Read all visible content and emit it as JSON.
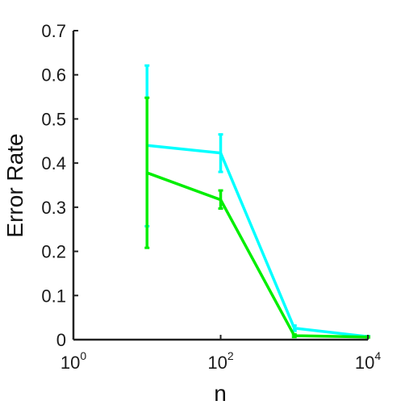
{
  "chart_data": {
    "type": "line",
    "title": "",
    "xlabel": "n",
    "ylabel": "Error Rate",
    "xscale": "log",
    "xlim": [
      1,
      10000
    ],
    "ylim": [
      0,
      0.7
    ],
    "grid": false,
    "xticks": [
      {
        "value": 1,
        "base": "10",
        "exp": "0"
      },
      {
        "value": 100,
        "base": "10",
        "exp": "2"
      },
      {
        "value": 10000,
        "base": "10",
        "exp": "4"
      }
    ],
    "yticks": [
      {
        "value": 0,
        "label": "0"
      },
      {
        "value": 0.1,
        "label": "0.1"
      },
      {
        "value": 0.2,
        "label": "0.2"
      },
      {
        "value": 0.3,
        "label": "0.3"
      },
      {
        "value": 0.4,
        "label": "0.4"
      },
      {
        "value": 0.5,
        "label": "0.5"
      },
      {
        "value": 0.6,
        "label": "0.6"
      },
      {
        "value": 0.7,
        "label": "0.7"
      }
    ],
    "series": [
      {
        "name": "cyan-series",
        "color": "#00ffff",
        "points": [
          {
            "x": 10,
            "y": 0.44,
            "lo": 0.257,
            "hi": 0.621
          },
          {
            "x": 100,
            "y": 0.423,
            "lo": 0.38,
            "hi": 0.465
          },
          {
            "x": 1000,
            "y": 0.026,
            "lo": 0.02,
            "hi": 0.032
          },
          {
            "x": 10000,
            "y": 0.007,
            "lo": 0.006,
            "hi": 0.008
          }
        ]
      },
      {
        "name": "green-series",
        "color": "#00ee00",
        "points": [
          {
            "x": 10,
            "y": 0.378,
            "lo": 0.208,
            "hi": 0.548
          },
          {
            "x": 100,
            "y": 0.317,
            "lo": 0.297,
            "hi": 0.338
          },
          {
            "x": 1000,
            "y": 0.009,
            "lo": 0.006,
            "hi": 0.012
          },
          {
            "x": 10000,
            "y": 0.006,
            "lo": 0.005,
            "hi": 0.007
          }
        ]
      }
    ]
  }
}
